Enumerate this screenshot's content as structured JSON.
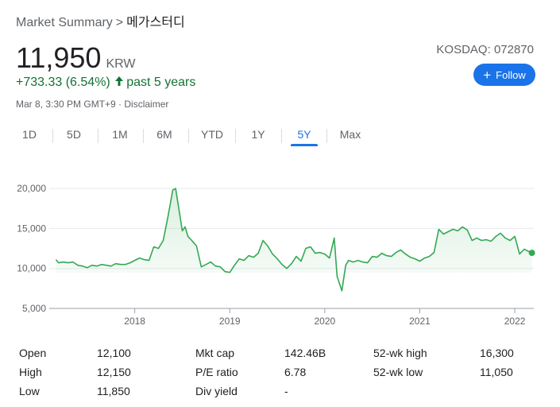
{
  "breadcrumb": {
    "root": "Market Summary",
    "separator": ">",
    "name": "메가스터디"
  },
  "quote": {
    "price": "11,950",
    "currency": "KRW",
    "change": "+733.33 (6.54%)",
    "period": "past 5 years",
    "timestamp": "Mar 8, 3:30 PM GMT+9 · Disclaimer",
    "exchange_ticker": "KOSDAQ: 072870"
  },
  "follow_label": "Follow",
  "tabs": [
    "1D",
    "5D",
    "1M",
    "6M",
    "YTD",
    "1Y",
    "5Y",
    "Max"
  ],
  "active_tab": "5Y",
  "colors": {
    "line": "#34a853",
    "accent": "#1a73e8",
    "up": "#137333"
  },
  "chart_data": {
    "type": "area",
    "y_ticks": [
      "20,000",
      "15,000",
      "10,000",
      "5,000"
    ],
    "x_ticks": [
      "2018",
      "2019",
      "2020",
      "2021",
      "2022"
    ],
    "ylim": [
      5000,
      21000
    ],
    "xlim": [
      2017.1,
      2022.2
    ],
    "grid": true,
    "series": [
      {
        "x": [
          2017.17,
          2017.2,
          2017.25,
          2017.3,
          2017.35,
          2017.4,
          2017.45,
          2017.5,
          2017.55,
          2017.6,
          2017.65,
          2017.7,
          2017.75,
          2017.8,
          2017.85,
          2017.9,
          2017.95,
          2018.0,
          2018.05,
          2018.1,
          2018.15,
          2018.2,
          2018.25,
          2018.3,
          2018.35,
          2018.4,
          2018.43,
          2018.47,
          2018.5,
          2018.53,
          2018.56,
          2018.6,
          2018.65,
          2018.7,
          2018.75,
          2018.8,
          2018.85,
          2018.9,
          2018.95,
          2019.0,
          2019.05,
          2019.1,
          2019.15,
          2019.2,
          2019.25,
          2019.3,
          2019.35,
          2019.4,
          2019.45,
          2019.5,
          2019.55,
          2019.6,
          2019.65,
          2019.7,
          2019.75,
          2019.8,
          2019.85,
          2019.9,
          2019.95,
          2020.0,
          2020.05,
          2020.1,
          2020.13,
          2020.18,
          2020.22,
          2020.25,
          2020.3,
          2020.35,
          2020.4,
          2020.45,
          2020.5,
          2020.55,
          2020.6,
          2020.65,
          2020.7,
          2020.75,
          2020.8,
          2020.85,
          2020.9,
          2020.95,
          2021.0,
          2021.05,
          2021.1,
          2021.15,
          2021.2,
          2021.25,
          2021.3,
          2021.35,
          2021.4,
          2021.45,
          2021.5,
          2021.55,
          2021.6,
          2021.65,
          2021.7,
          2021.75,
          2021.8,
          2021.85,
          2021.9,
          2021.95,
          2022.0,
          2022.05,
          2022.1,
          2022.15,
          2022.18
        ],
        "y": [
          11100,
          10700,
          10800,
          10700,
          10800,
          10400,
          10300,
          10100,
          10400,
          10300,
          10500,
          10400,
          10300,
          10600,
          10500,
          10500,
          10700,
          11000,
          11300,
          11100,
          11000,
          12700,
          12500,
          13500,
          16500,
          19800,
          20000,
          17000,
          14700,
          15200,
          14000,
          13500,
          12800,
          10200,
          10500,
          10800,
          10300,
          10200,
          9600,
          9500,
          10400,
          11200,
          11000,
          11600,
          11400,
          11900,
          13500,
          12800,
          11800,
          11200,
          10500,
          10000,
          10600,
          11500,
          10900,
          12500,
          12700,
          11900,
          12000,
          11800,
          11300,
          13800,
          9000,
          7200,
          10400,
          11000,
          10800,
          11000,
          10800,
          10700,
          11500,
          11400,
          11900,
          11600,
          11500,
          12000,
          12300,
          11800,
          11400,
          11200,
          10900,
          11300,
          11500,
          12000,
          14900,
          14300,
          14600,
          14900,
          14700,
          15200,
          14800,
          13500,
          13800,
          13500,
          13600,
          13400,
          14000,
          14400,
          13800,
          13500,
          14000,
          11800,
          12400,
          12100,
          11950
        ]
      }
    ]
  },
  "stats": [
    {
      "label": "Open",
      "value": "12,100"
    },
    {
      "label": "High",
      "value": "12,150"
    },
    {
      "label": "Low",
      "value": "11,850"
    },
    {
      "label": "Mkt cap",
      "value": "142.46B"
    },
    {
      "label": "P/E ratio",
      "value": "6.78"
    },
    {
      "label": "Div yield",
      "value": "-"
    },
    {
      "label": "52-wk high",
      "value": "16,300"
    },
    {
      "label": "52-wk low",
      "value": "11,050"
    }
  ]
}
